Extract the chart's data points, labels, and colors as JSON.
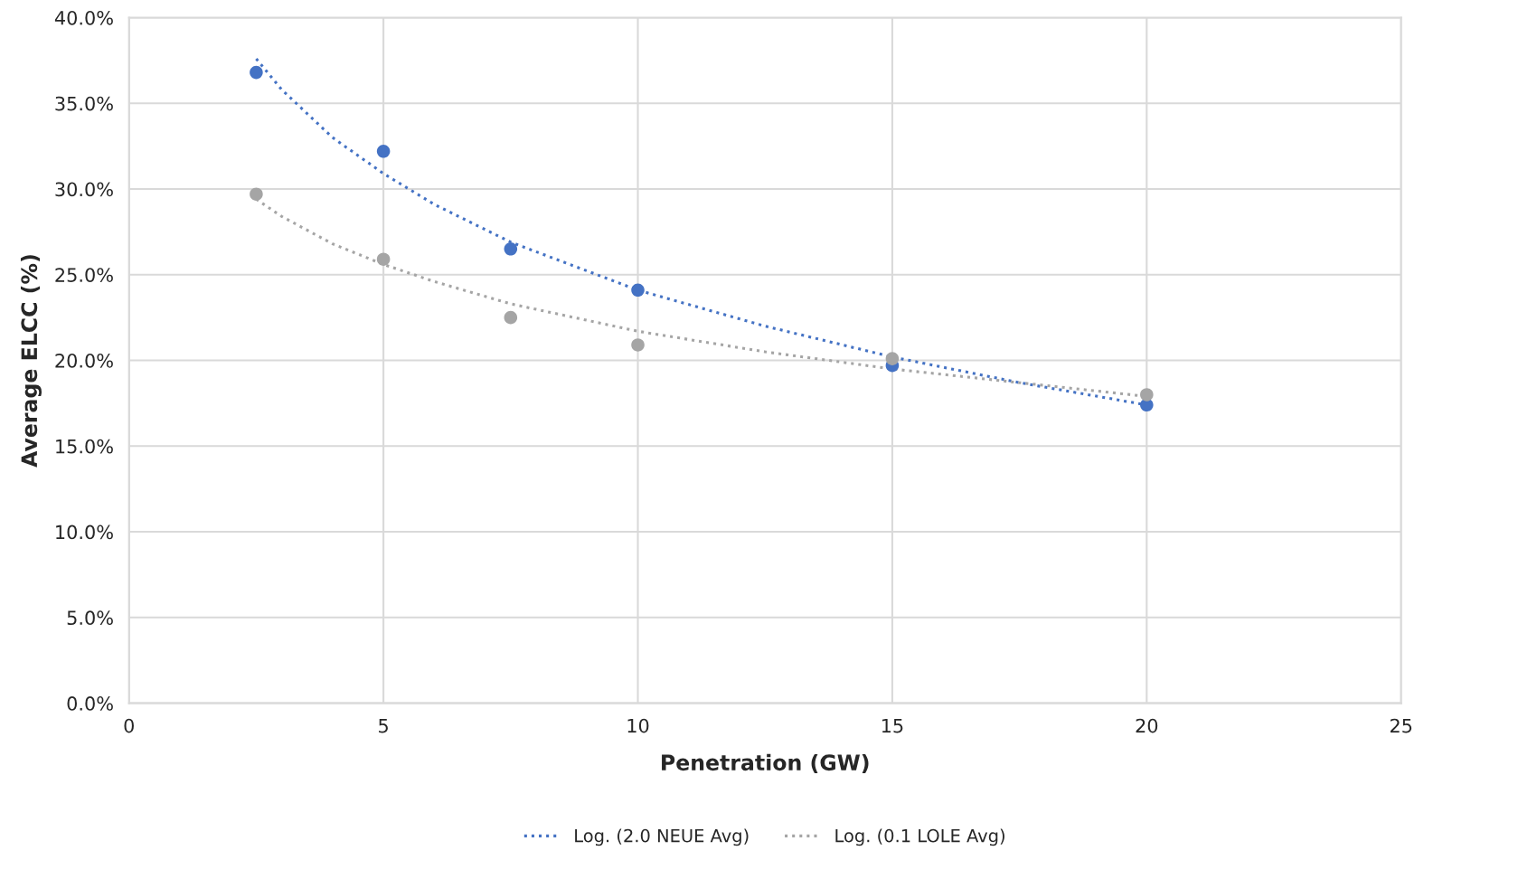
{
  "chart_data": {
    "type": "scatter",
    "xlabel": "Penetration (GW)",
    "ylabel": "Average ELCC (%)",
    "xlim": [
      0,
      25
    ],
    "xticks": [
      0,
      5,
      10,
      15,
      20,
      25
    ],
    "ylim": [
      0,
      40
    ],
    "yticks": [
      {
        "value": 0,
        "label": "0.0%"
      },
      {
        "value": 5,
        "label": "5.0%"
      },
      {
        "value": 10,
        "label": "10.0%"
      },
      {
        "value": 15,
        "label": "15.0%"
      },
      {
        "value": 20,
        "label": "20.0%"
      },
      {
        "value": 25,
        "label": "25.0%"
      },
      {
        "value": 30,
        "label": "30.0%"
      },
      {
        "value": 35,
        "label": "35.0%"
      },
      {
        "value": 40,
        "label": "40.0%"
      }
    ],
    "grid": true,
    "legend": "bottom",
    "series": [
      {
        "color": "#4472c4",
        "marker": "circle",
        "x": [
          2.5,
          5,
          7.5,
          10,
          15,
          20
        ],
        "values": [
          36.8,
          32.2,
          26.5,
          24.1,
          19.7,
          17.4
        ]
      },
      {
        "color": "#a5a5a5",
        "marker": "circle",
        "x": [
          2.5,
          5,
          7.5,
          10,
          15,
          20
        ],
        "values": [
          29.7,
          25.9,
          22.5,
          20.9,
          20.1,
          18.0
        ]
      },
      {
        "type": "line",
        "name": "Log. (2.0 NEUE Avg)",
        "color": "#4472c4",
        "marker": "none",
        "line_style": "dotted",
        "x": [
          2.5,
          3,
          4,
          5,
          6,
          7.5,
          10,
          12.5,
          15,
          17.5,
          20
        ],
        "values": [
          37.6,
          35.8,
          33.0,
          30.9,
          29.1,
          26.9,
          24.1,
          22.0,
          20.2,
          18.7,
          17.4
        ]
      },
      {
        "type": "line",
        "name": "Log. (0.1 LOLE Avg)",
        "color": "#a5a5a5",
        "marker": "none",
        "line_style": "dotted",
        "x": [
          2.5,
          3,
          4,
          5,
          6,
          7.5,
          10,
          12.5,
          15,
          17.5,
          20
        ],
        "values": [
          29.4,
          28.4,
          26.8,
          25.6,
          24.6,
          23.3,
          21.7,
          20.5,
          19.5,
          18.7,
          17.9
        ]
      }
    ]
  }
}
